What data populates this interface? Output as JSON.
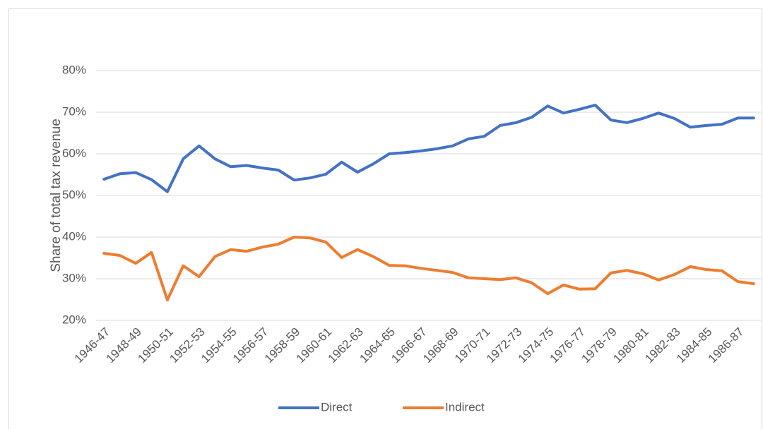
{
  "chart_data": {
    "type": "line",
    "y_label": "Share of total tax revenue",
    "categories": [
      "1946-47",
      null,
      "1948-49",
      null,
      "1950-51",
      null,
      "1952-53",
      null,
      "1954-55",
      null,
      "1956-57",
      null,
      "1958-59",
      null,
      "1960-61",
      null,
      "1962-63",
      null,
      "1964-65",
      null,
      "1966-67",
      null,
      "1968-69",
      null,
      "1970-71",
      null,
      "1972-73",
      null,
      "1974-75",
      null,
      "1976-77",
      null,
      "1978-79",
      null,
      "1980-81",
      null,
      "1982-83",
      null,
      "1984-85",
      null,
      "1986-87",
      null
    ],
    "series": [
      {
        "name": "Direct",
        "color": "#4472c4",
        "values": [
          53.9,
          55.2,
          55.5,
          53.8,
          50.9,
          58.8,
          61.9,
          58.8,
          56.9,
          57.2,
          56.6,
          56.1,
          53.7,
          54.2,
          55.1,
          58.0,
          55.6,
          57.6,
          60.0,
          60.3,
          60.7,
          61.2,
          61.9,
          63.6,
          64.2,
          66.8,
          67.5,
          68.8,
          71.5,
          69.8,
          70.7,
          71.7,
          68.1,
          67.5,
          68.5,
          69.8,
          68.5,
          66.4,
          66.8,
          67.1,
          68.6,
          68.6
        ]
      },
      {
        "name": "Indirect",
        "color": "#ed7d31",
        "values": [
          36.1,
          35.6,
          33.7,
          36.3,
          24.9,
          33.1,
          30.5,
          35.3,
          37.0,
          36.6,
          37.6,
          38.3,
          40.0,
          39.8,
          38.8,
          35.1,
          37.0,
          35.3,
          33.2,
          33.1,
          32.5,
          32.0,
          31.5,
          30.2,
          30.0,
          29.8,
          30.2,
          29.0,
          26.4,
          28.5,
          27.5,
          27.6,
          31.4,
          32.0,
          31.2,
          29.7,
          31.0,
          32.9,
          32.2,
          31.9,
          29.3,
          28.8
        ]
      }
    ],
    "ylim": [
      20,
      80
    ],
    "yticks": [
      {
        "value": 20,
        "label": "20%"
      },
      {
        "value": 30,
        "label": "30%"
      },
      {
        "value": 40,
        "label": "40%"
      },
      {
        "value": 50,
        "label": "50%"
      },
      {
        "value": 60,
        "label": "60%"
      },
      {
        "value": 70,
        "label": "70%"
      },
      {
        "value": 80,
        "label": "80%"
      }
    ],
    "grid": true,
    "legend": "bottom"
  }
}
